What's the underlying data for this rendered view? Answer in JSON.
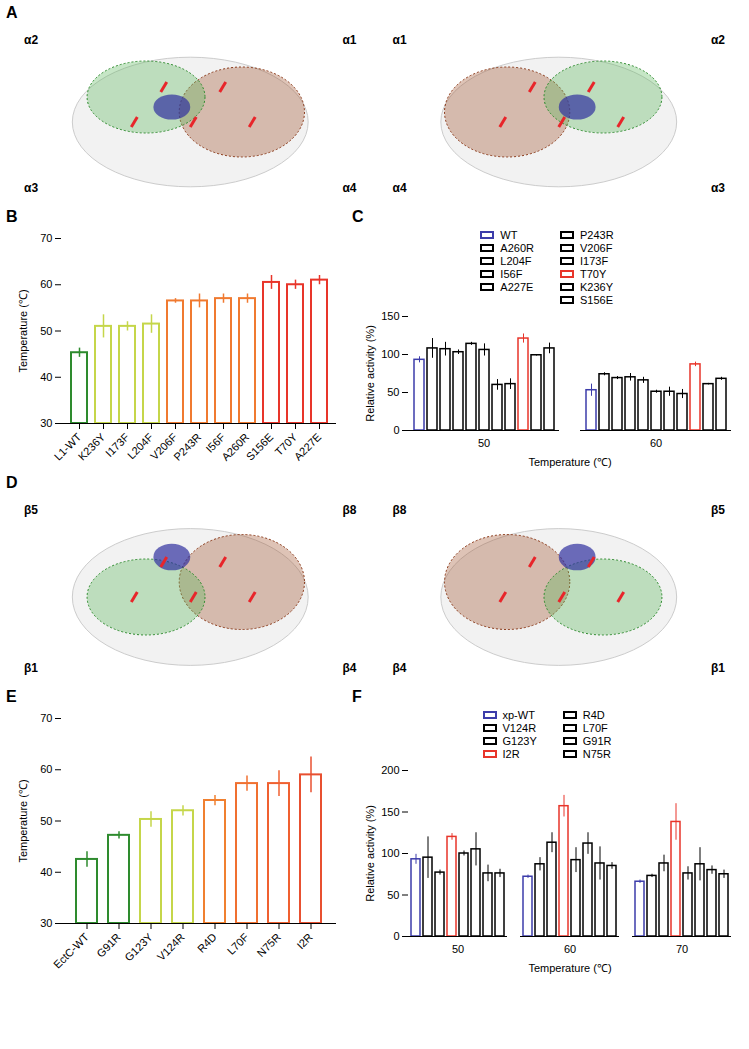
{
  "structure_panels": [
    {
      "panel": "A",
      "views": [
        {
          "labels": [
            "α2",
            "α1",
            "α3",
            "α4"
          ]
        },
        {
          "labels": [
            "α1",
            "α2",
            "α4",
            "α3"
          ]
        }
      ]
    },
    {
      "panel": "D",
      "views": [
        {
          "labels": [
            "β5",
            "β8",
            "β1",
            "β4"
          ]
        },
        {
          "labels": [
            "β8",
            "β5",
            "β4",
            "β1"
          ]
        }
      ]
    }
  ],
  "chart_data": [
    {
      "panel": "B",
      "type": "bar",
      "y_label": "Temperature (℃)",
      "categories": [
        "L1-WT",
        "K236Y",
        "I173F",
        "L204F",
        "V206F",
        "P243R",
        "I56F",
        "A260R",
        "S156E",
        "T70Y",
        "A227E"
      ],
      "values": [
        45.3,
        51,
        51,
        51.5,
        56.5,
        56.5,
        57,
        57,
        60.5,
        60,
        61
      ],
      "errors": [
        1,
        2.5,
        1,
        2,
        0.5,
        1.5,
        1,
        1,
        1.5,
        1,
        1
      ],
      "colors": [
        "#2e8b2e",
        "#c5d64a",
        "#c5d64a",
        "#c5d64a",
        "#f07a30",
        "#f07a30",
        "#f07a30",
        "#f07a30",
        "#e8352a",
        "#e8352a",
        "#e8352a"
      ],
      "ylim": [
        30,
        70
      ],
      "yticks": [
        30,
        40,
        50,
        60,
        70
      ]
    },
    {
      "panel": "C",
      "type": "grouped_bar",
      "x_label": "Temperature (℃)",
      "y_label": "Relative activity (%)",
      "categories": [
        50,
        60
      ],
      "legend": "top",
      "series": [
        {
          "name": "WT",
          "color": "#3c3caa",
          "values": [
            93,
            53
          ],
          "errors": [
            4,
            8
          ]
        },
        {
          "name": "A260R",
          "color": "#000000",
          "values": [
            108,
            74
          ],
          "errors": [
            13,
            2
          ]
        },
        {
          "name": "L204F",
          "color": "#000000",
          "values": [
            107,
            69
          ],
          "errors": [
            9,
            2
          ]
        },
        {
          "name": "I56F",
          "color": "#000000",
          "values": [
            103,
            70
          ],
          "errors": [
            3,
            5
          ]
        },
        {
          "name": "A227E",
          "color": "#000000",
          "values": [
            114,
            66
          ],
          "errors": [
            2,
            4
          ]
        },
        {
          "name": "P243R",
          "color": "#000000",
          "values": [
            106,
            51
          ],
          "errors": [
            8,
            2
          ]
        },
        {
          "name": "V206F",
          "color": "#000000",
          "values": [
            60,
            51
          ],
          "errors": [
            7,
            6
          ]
        },
        {
          "name": "I173F",
          "color": "#000000",
          "values": [
            61,
            48
          ],
          "errors": [
            7,
            6
          ]
        },
        {
          "name": "T70Y",
          "color": "#e8352a",
          "values": [
            121,
            87
          ],
          "errors": [
            6,
            3
          ]
        },
        {
          "name": "K236Y",
          "color": "#000000",
          "values": [
            99,
            61
          ],
          "errors": [
            1,
            1
          ]
        },
        {
          "name": "S156E",
          "color": "#000000",
          "values": [
            108,
            68
          ],
          "errors": [
            7,
            2
          ]
        }
      ],
      "ylim": [
        0,
        150
      ],
      "yticks": [
        0,
        50,
        100,
        150
      ]
    },
    {
      "panel": "E",
      "type": "bar",
      "y_label": "Temperature (℃)",
      "categories": [
        "EctC-WT",
        "G91R",
        "G123Y",
        "V124R",
        "R4D",
        "L70F",
        "N75R",
        "I2R"
      ],
      "values": [
        42.5,
        47.2,
        50.3,
        52,
        54,
        57.3,
        57.3,
        59
      ],
      "errors": [
        1.5,
        0.7,
        1.5,
        1,
        1,
        1.5,
        2.5,
        3.5
      ],
      "colors": [
        "#2e8b2e",
        "#2e8b2e",
        "#c5d64a",
        "#c5d64a",
        "#f08030",
        "#f07030",
        "#f06030",
        "#e85030"
      ],
      "ylim": [
        30,
        70
      ],
      "yticks": [
        30,
        40,
        50,
        60,
        70
      ]
    },
    {
      "panel": "F",
      "type": "grouped_bar",
      "x_label": "Temperature (℃)",
      "y_label": "Relative activity (%)",
      "categories": [
        50,
        60,
        70
      ],
      "legend": "top",
      "series": [
        {
          "name": "xp-WT",
          "color": "#3c3caa",
          "values": [
            93,
            72,
            66
          ],
          "errors": [
            6,
            2,
            2
          ]
        },
        {
          "name": "V124R",
          "color": "#000000",
          "values": [
            95,
            87,
            73
          ],
          "errors": [
            25,
            8,
            2
          ]
        },
        {
          "name": "G123Y",
          "color": "#000000",
          "values": [
            77,
            113,
            88
          ],
          "errors": [
            3,
            12,
            10
          ]
        },
        {
          "name": "I2R",
          "color": "#e8352a",
          "values": [
            120,
            157,
            138
          ],
          "errors": [
            4,
            13,
            22
          ]
        },
        {
          "name": "R4D",
          "color": "#000000",
          "values": [
            100,
            92,
            76
          ],
          "errors": [
            3,
            15,
            8
          ]
        },
        {
          "name": "L70F",
          "color": "#000000",
          "values": [
            105,
            112,
            87
          ],
          "errors": [
            20,
            13,
            20
          ]
        },
        {
          "name": "G91R",
          "color": "#000000",
          "values": [
            76,
            88,
            80
          ],
          "errors": [
            10,
            20,
            5
          ]
        },
        {
          "name": "N75R",
          "color": "#000000",
          "values": [
            76,
            85,
            75
          ],
          "errors": [
            5,
            4,
            5
          ]
        }
      ],
      "ylim": [
        0,
        200
      ],
      "yticks": [
        0,
        50,
        100,
        150,
        200
      ]
    }
  ]
}
